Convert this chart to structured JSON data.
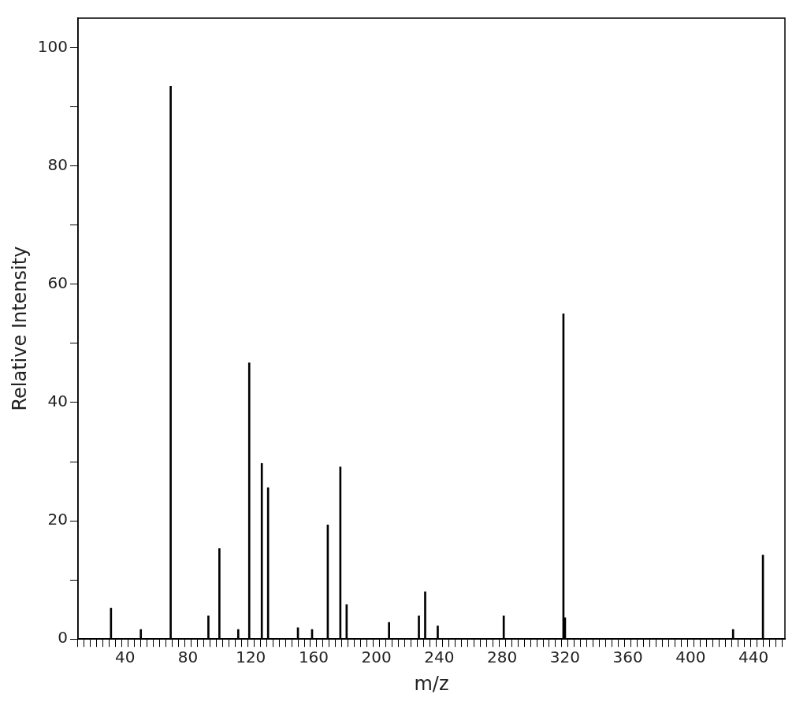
{
  "chart_data": {
    "type": "bar",
    "xlabel": "m/z",
    "ylabel": "Relative Intensity",
    "color": "#000000",
    "x": [
      31,
      50,
      69,
      93,
      100,
      112,
      119,
      127,
      131,
      150,
      159,
      169,
      177,
      181,
      208,
      227,
      231,
      239,
      281,
      319,
      320,
      427,
      446
    ],
    "values": [
      5.2,
      1.6,
      93.5,
      3.9,
      15.3,
      1.6,
      46.7,
      29.7,
      25.6,
      1.9,
      1.6,
      19.3,
      29.1,
      5.8,
      2.8,
      3.9,
      8.0,
      2.2,
      3.9,
      55.0,
      3.6,
      1.6,
      14.2
    ],
    "xlim": [
      10,
      460
    ],
    "ylim": [
      0,
      105
    ],
    "xticks": [
      {
        "value": 12,
        "label": null
      },
      {
        "value": 16,
        "label": null
      },
      {
        "value": 20,
        "label": null
      },
      {
        "value": 24,
        "label": null
      },
      {
        "value": 28,
        "label": null
      },
      {
        "value": 32,
        "label": null
      },
      {
        "value": 36,
        "label": null
      },
      40,
      {
        "value": 44,
        "label": null
      },
      {
        "value": 48,
        "label": null
      },
      {
        "value": 52,
        "label": null
      },
      {
        "value": 56,
        "label": null
      },
      {
        "value": 60,
        "label": null
      },
      {
        "value": 64,
        "label": null
      },
      {
        "value": 68,
        "label": null
      },
      {
        "value": 72,
        "label": null
      },
      {
        "value": 76,
        "label": null
      },
      80,
      {
        "value": 84,
        "label": null
      },
      {
        "value": 88,
        "label": null
      },
      {
        "value": 92,
        "label": null
      },
      {
        "value": 96,
        "label": null
      },
      {
        "value": 100,
        "label": null
      },
      {
        "value": 104,
        "label": null
      },
      {
        "value": 108,
        "label": null
      },
      {
        "value": 112,
        "label": null
      },
      {
        "value": 116,
        "label": null
      },
      120,
      {
        "value": 124,
        "label": null
      },
      {
        "value": 128,
        "label": null
      },
      {
        "value": 132,
        "label": null
      },
      {
        "value": 136,
        "label": null
      },
      {
        "value": 140,
        "label": null
      },
      {
        "value": 144,
        "label": null
      },
      {
        "value": 148,
        "label": null
      },
      {
        "value": 152,
        "label": null
      },
      {
        "value": 156,
        "label": null
      },
      160,
      {
        "value": 164,
        "label": null
      },
      {
        "value": 168,
        "label": null
      },
      {
        "value": 172,
        "label": null
      },
      {
        "value": 176,
        "label": null
      },
      {
        "value": 180,
        "label": null
      },
      {
        "value": 184,
        "label": null
      },
      {
        "value": 188,
        "label": null
      },
      {
        "value": 192,
        "label": null
      },
      {
        "value": 196,
        "label": null
      },
      200,
      {
        "value": 204,
        "label": null
      },
      {
        "value": 208,
        "label": null
      },
      {
        "value": 212,
        "label": null
      },
      {
        "value": 216,
        "label": null
      },
      {
        "value": 220,
        "label": null
      },
      {
        "value": 224,
        "label": null
      },
      {
        "value": 228,
        "label": null
      },
      {
        "value": 232,
        "label": null
      },
      {
        "value": 236,
        "label": null
      },
      240,
      {
        "value": 244,
        "label": null
      },
      {
        "value": 248,
        "label": null
      },
      {
        "value": 252,
        "label": null
      },
      {
        "value": 256,
        "label": null
      },
      {
        "value": 260,
        "label": null
      },
      {
        "value": 264,
        "label": null
      },
      {
        "value": 268,
        "label": null
      },
      {
        "value": 272,
        "label": null
      },
      {
        "value": 276,
        "label": null
      },
      280,
      {
        "value": 284,
        "label": null
      },
      {
        "value": 288,
        "label": null
      },
      {
        "value": 292,
        "label": null
      },
      {
        "value": 296,
        "label": null
      },
      {
        "value": 300,
        "label": null
      },
      {
        "value": 304,
        "label": null
      },
      {
        "value": 308,
        "label": null
      },
      {
        "value": 312,
        "label": null
      },
      {
        "value": 316,
        "label": null
      },
      320,
      {
        "value": 324,
        "label": null
      },
      {
        "value": 328,
        "label": null
      },
      {
        "value": 332,
        "label": null
      },
      {
        "value": 336,
        "label": null
      },
      {
        "value": 340,
        "label": null
      },
      {
        "value": 344,
        "label": null
      },
      {
        "value": 348,
        "label": null
      },
      {
        "value": 352,
        "label": null
      },
      {
        "value": 356,
        "label": null
      },
      360,
      {
        "value": 364,
        "label": null
      },
      {
        "value": 368,
        "label": null
      },
      {
        "value": 372,
        "label": null
      },
      {
        "value": 376,
        "label": null
      },
      {
        "value": 380,
        "label": null
      },
      {
        "value": 384,
        "label": null
      },
      {
        "value": 388,
        "label": null
      },
      {
        "value": 392,
        "label": null
      },
      {
        "value": 396,
        "label": null
      },
      400,
      {
        "value": 404,
        "label": null
      },
      {
        "value": 408,
        "label": null
      },
      {
        "value": 412,
        "label": null
      },
      {
        "value": 416,
        "label": null
      },
      {
        "value": 420,
        "label": null
      },
      {
        "value": 424,
        "label": null
      },
      {
        "value": 428,
        "label": null
      },
      {
        "value": 432,
        "label": null
      },
      {
        "value": 436,
        "label": null
      },
      440,
      {
        "value": 444,
        "label": null
      },
      {
        "value": 448,
        "label": null
      },
      {
        "value": 452,
        "label": null
      },
      {
        "value": 456,
        "label": null
      }
    ],
    "yticks": [
      0,
      {
        "value": 10,
        "label": null
      },
      20,
      {
        "value": 30,
        "label": null
      },
      40,
      {
        "value": 50,
        "label": null
      },
      60,
      {
        "value": 70,
        "label": null
      },
      80,
      {
        "value": 90,
        "label": null
      },
      100
    ],
    "grid": false,
    "legend": false
  }
}
